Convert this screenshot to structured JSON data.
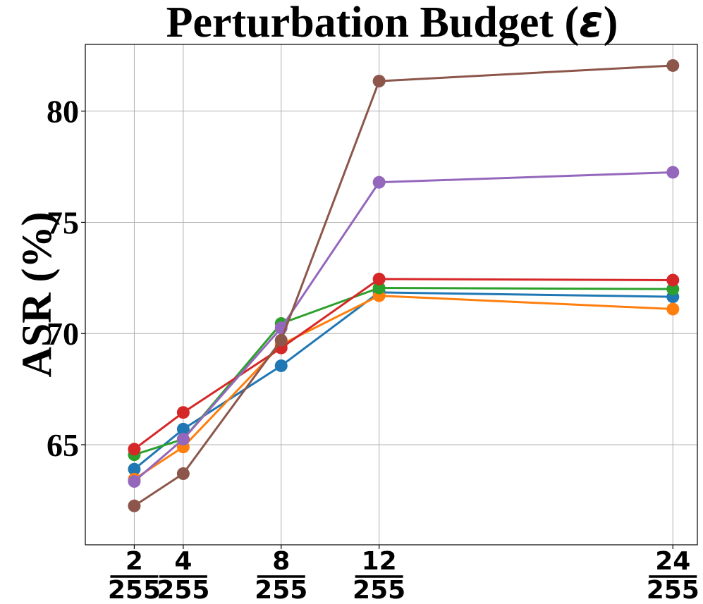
{
  "chart_data": {
    "type": "line",
    "title": "Perturbation Budget (ε)",
    "title_main": "Perturbation Budget (",
    "title_symbol": "ε",
    "title_close": ")",
    "xlabel": "",
    "ylabel": "ASR (%)",
    "x": [
      2,
      4,
      8,
      12,
      24
    ],
    "x_tick_numerators": [
      "2",
      "4",
      "8",
      "12",
      "24"
    ],
    "x_tick_denominator": "255",
    "xlim": [
      0.0,
      25.0
    ],
    "ylim": [
      60.5,
      83.0
    ],
    "y_ticks": [
      65,
      70,
      75,
      80
    ],
    "y_tick_labels": [
      "65",
      "70",
      "75",
      "80"
    ],
    "grid": true,
    "legend": "none",
    "series": [
      {
        "name": "blue",
        "color": "#1f77b4",
        "values": [
          63.9,
          65.7,
          68.55,
          71.85,
          71.65
        ]
      },
      {
        "name": "orange",
        "color": "#ff7f0e",
        "values": [
          63.45,
          64.9,
          69.5,
          71.7,
          71.1
        ]
      },
      {
        "name": "green",
        "color": "#2ca02c",
        "values": [
          64.55,
          65.25,
          70.45,
          72.05,
          72.0
        ]
      },
      {
        "name": "red",
        "color": "#d62728",
        "values": [
          64.8,
          66.45,
          69.35,
          72.45,
          72.4
        ]
      },
      {
        "name": "purple",
        "color": "#9467bd",
        "values": [
          63.35,
          65.25,
          70.25,
          76.8,
          77.25
        ]
      },
      {
        "name": "brown",
        "color": "#8c564b",
        "values": [
          62.25,
          63.7,
          69.7,
          81.35,
          82.05
        ]
      }
    ]
  }
}
